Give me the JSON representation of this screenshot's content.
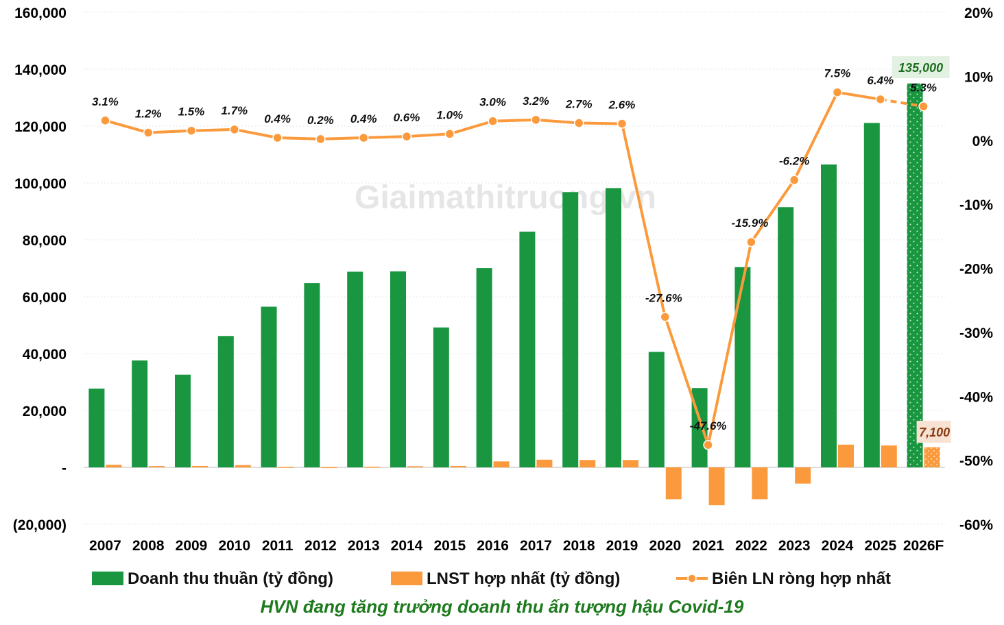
{
  "chart_data": {
    "type": "bar",
    "caption": "HVN đang tăng trưởng doanh thu ấn tượng hậu Covid-19",
    "watermark": "Giaimathitruong.vn",
    "categories": [
      "2007",
      "2008",
      "2009",
      "2010",
      "2011",
      "2012",
      "2013",
      "2014",
      "2015",
      "2016",
      "2017",
      "2018",
      "2019",
      "2020",
      "2021",
      "2022",
      "2023",
      "2024",
      "2025",
      "2026F"
    ],
    "series": [
      {
        "name": "Doanh thu thuần (tỷ đồng)",
        "type": "bar",
        "axis": "left",
        "color": "#1a9641",
        "values": [
          27700,
          37600,
          32600,
          46200,
          56500,
          64800,
          68800,
          68900,
          49200,
          70100,
          82900,
          96800,
          98200,
          40600,
          27900,
          70400,
          91500,
          106500,
          121100,
          135000
        ]
      },
      {
        "name": "LNST hợp nhất (tỷ đồng)",
        "type": "bar",
        "axis": "left",
        "color": "#fb9a3c",
        "values": [
          900,
          450,
          500,
          800,
          200,
          100,
          250,
          400,
          500,
          2100,
          2700,
          2600,
          2600,
          -11200,
          -13300,
          -11200,
          -5700,
          8000,
          7700,
          7100
        ]
      },
      {
        "name": "Biên LN ròng hợp nhất",
        "type": "line",
        "axis": "right",
        "color": "#fb9a3c",
        "values": [
          3.1,
          1.2,
          1.5,
          1.7,
          0.4,
          0.2,
          0.4,
          0.6,
          1.0,
          3.0,
          3.2,
          2.7,
          2.6,
          -27.6,
          -47.6,
          -15.9,
          -6.2,
          7.5,
          6.4,
          5.3
        ],
        "labels": [
          "3.1%",
          "1.2%",
          "1.5%",
          "1.7%",
          "0.4%",
          "0.2%",
          "0.4%",
          "0.6%",
          "1.0%",
          "3.0%",
          "3.2%",
          "2.7%",
          "2.6%",
          "-27.6%",
          "-47.6%",
          "-15.9%",
          "-6.2%",
          "7.5%",
          "6.4%",
          "5.3%"
        ]
      }
    ],
    "forecast_labels": {
      "revenue": "135,000",
      "net_profit": "7,100"
    },
    "left_axis": {
      "ylim": [
        -20000,
        160000
      ],
      "ticks": [
        -20000,
        0,
        20000,
        40000,
        60000,
        80000,
        100000,
        120000,
        140000,
        160000
      ],
      "tick_labels": [
        "(20,000)",
        "-",
        "20,000",
        "40,000",
        "60,000",
        "80,000",
        "100,000",
        "120,000",
        "140,000",
        "160,000"
      ]
    },
    "right_axis": {
      "ylim": [
        -60,
        20
      ],
      "ticks": [
        -60,
        -50,
        -40,
        -30,
        -20,
        -10,
        0,
        10,
        20
      ],
      "tick_labels": [
        "-60%",
        "-50%",
        "-40%",
        "-30%",
        "-20%",
        "-10%",
        "0%",
        "10%",
        "20%"
      ]
    },
    "grid": true,
    "legend_position": "bottom"
  }
}
